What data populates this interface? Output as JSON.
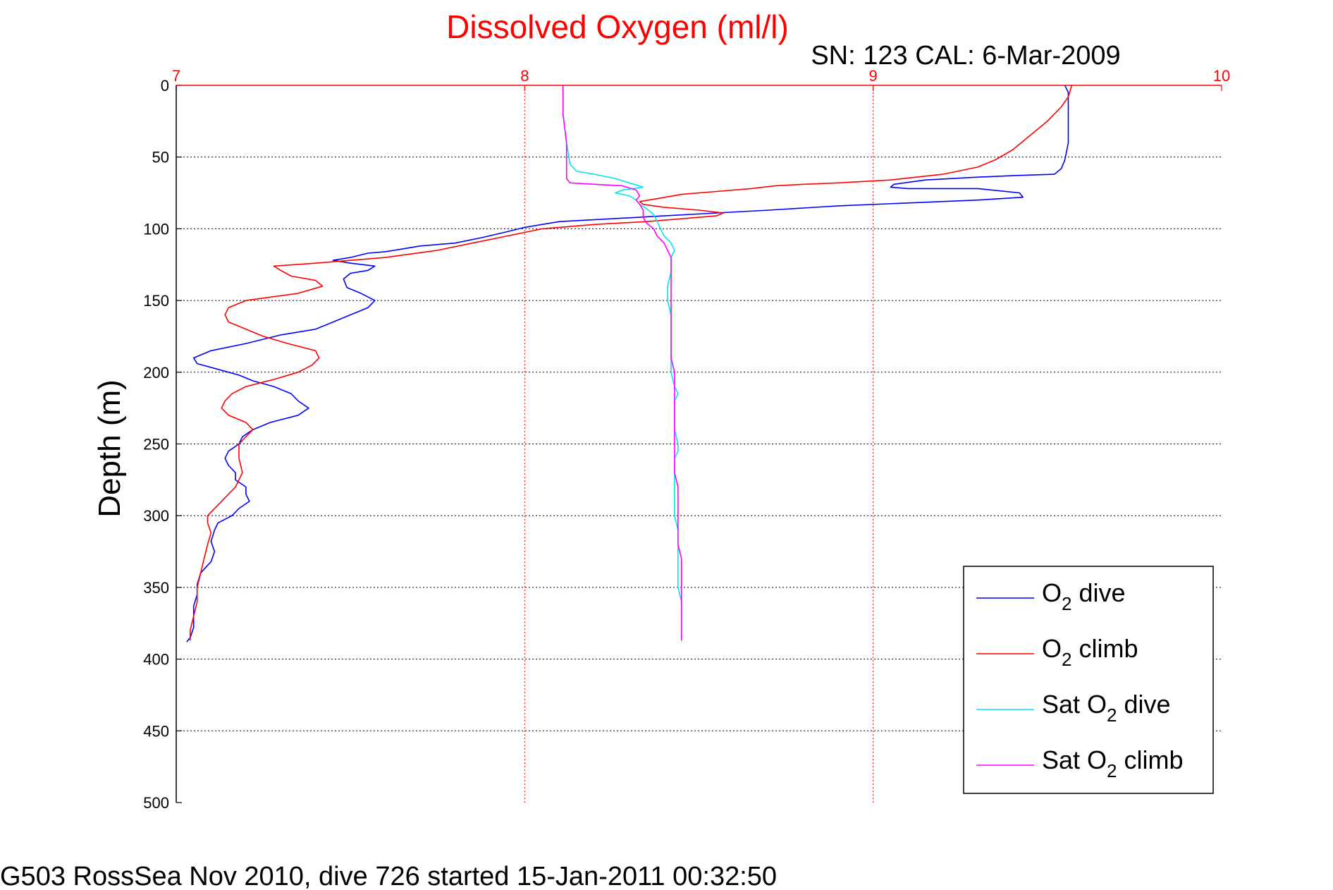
{
  "chart_data": {
    "type": "line",
    "title": "Dissolved Oxygen (ml/l)",
    "subtitle": "SN: 123  CAL: 6-Mar-2009",
    "footer": "G503 RossSea Nov 2010, dive 726 started 15-Jan-2011 00:32:50",
    "xlabel": "",
    "ylabel": "Depth (m)",
    "xlim": [
      7,
      10
    ],
    "ylim": [
      0,
      500
    ],
    "y_reversed": true,
    "x_axis_position": "top",
    "x_ticks": [
      "7",
      "8",
      "9",
      "10"
    ],
    "y_ticks": [
      "0",
      "50",
      "100",
      "150",
      "200",
      "250",
      "300",
      "350",
      "400",
      "450",
      "500"
    ],
    "grid": true,
    "legend_position": "bottom-right",
    "colors": {
      "title": "#ff0000",
      "x_axis": "#ff0000",
      "axes": "#000000"
    },
    "series": [
      {
        "name": "O2 dive",
        "legend": {
          "prefix": "O",
          "sub": "2",
          "suffix": " dive"
        },
        "color": "#0000ff",
        "points": [
          [
            9.55,
            0
          ],
          [
            9.56,
            5
          ],
          [
            9.56,
            20
          ],
          [
            9.56,
            40
          ],
          [
            9.55,
            52
          ],
          [
            9.54,
            58
          ],
          [
            9.52,
            62
          ],
          [
            9.4,
            63
          ],
          [
            9.3,
            64
          ],
          [
            9.15,
            66
          ],
          [
            9.06,
            69
          ],
          [
            9.05,
            71
          ],
          [
            9.1,
            72
          ],
          [
            9.3,
            72
          ],
          [
            9.42,
            75
          ],
          [
            9.43,
            78
          ],
          [
            9.3,
            80
          ],
          [
            9.1,
            82
          ],
          [
            8.9,
            84
          ],
          [
            8.7,
            87
          ],
          [
            8.55,
            89
          ],
          [
            8.4,
            91
          ],
          [
            8.25,
            93
          ],
          [
            8.1,
            95
          ],
          [
            8.0,
            99
          ],
          [
            7.95,
            102
          ],
          [
            7.88,
            106
          ],
          [
            7.8,
            110
          ],
          [
            7.7,
            112
          ],
          [
            7.65,
            114
          ],
          [
            7.6,
            116
          ],
          [
            7.55,
            117
          ],
          [
            7.5,
            120
          ],
          [
            7.45,
            122
          ],
          [
            7.5,
            124
          ],
          [
            7.57,
            126
          ],
          [
            7.55,
            129
          ],
          [
            7.5,
            131
          ],
          [
            7.48,
            135
          ],
          [
            7.49,
            141
          ],
          [
            7.53,
            145
          ],
          [
            7.57,
            150
          ],
          [
            7.55,
            155
          ],
          [
            7.5,
            160
          ],
          [
            7.45,
            165
          ],
          [
            7.4,
            170
          ],
          [
            7.3,
            174
          ],
          [
            7.2,
            180
          ],
          [
            7.1,
            185
          ],
          [
            7.05,
            190
          ],
          [
            7.06,
            194
          ],
          [
            7.12,
            198
          ],
          [
            7.18,
            202
          ],
          [
            7.22,
            206
          ],
          [
            7.28,
            210
          ],
          [
            7.33,
            215
          ],
          [
            7.35,
            220
          ],
          [
            7.38,
            225
          ],
          [
            7.35,
            230
          ],
          [
            7.27,
            235
          ],
          [
            7.22,
            240
          ],
          [
            7.19,
            245
          ],
          [
            7.18,
            250
          ],
          [
            7.15,
            255
          ],
          [
            7.14,
            260
          ],
          [
            7.15,
            265
          ],
          [
            7.17,
            270
          ],
          [
            7.17,
            275
          ],
          [
            7.2,
            280
          ],
          [
            7.2,
            285
          ],
          [
            7.21,
            290
          ],
          [
            7.18,
            295
          ],
          [
            7.16,
            300
          ],
          [
            7.12,
            305
          ],
          [
            7.11,
            310
          ],
          [
            7.1,
            318
          ],
          [
            7.11,
            325
          ],
          [
            7.1,
            332
          ],
          [
            7.07,
            340
          ],
          [
            7.06,
            348
          ],
          [
            7.06,
            355
          ],
          [
            7.05,
            363
          ],
          [
            7.05,
            370
          ],
          [
            7.05,
            378
          ],
          [
            7.04,
            385
          ],
          [
            7.03,
            388
          ]
        ]
      },
      {
        "name": "O2 climb",
        "legend": {
          "prefix": "O",
          "sub": "2",
          "suffix": " climb"
        },
        "color": "#ff0000",
        "points": [
          [
            9.57,
            0
          ],
          [
            9.56,
            8
          ],
          [
            9.54,
            15
          ],
          [
            9.5,
            25
          ],
          [
            9.45,
            35
          ],
          [
            9.4,
            45
          ],
          [
            9.35,
            52
          ],
          [
            9.3,
            57
          ],
          [
            9.2,
            62
          ],
          [
            9.05,
            66
          ],
          [
            8.9,
            68
          ],
          [
            8.8,
            69
          ],
          [
            8.72,
            70
          ],
          [
            8.65,
            72
          ],
          [
            8.55,
            74
          ],
          [
            8.45,
            76
          ],
          [
            8.38,
            79
          ],
          [
            8.33,
            81
          ],
          [
            8.34,
            83
          ],
          [
            8.4,
            85
          ],
          [
            8.5,
            87
          ],
          [
            8.57,
            89
          ],
          [
            8.55,
            91
          ],
          [
            8.45,
            93
          ],
          [
            8.35,
            95
          ],
          [
            8.2,
            97
          ],
          [
            8.05,
            100
          ],
          [
            7.95,
            105
          ],
          [
            7.85,
            110
          ],
          [
            7.75,
            115
          ],
          [
            7.6,
            120
          ],
          [
            7.4,
            124
          ],
          [
            7.28,
            126
          ],
          [
            7.3,
            129
          ],
          [
            7.33,
            133
          ],
          [
            7.4,
            136
          ],
          [
            7.42,
            140
          ],
          [
            7.35,
            145
          ],
          [
            7.2,
            150
          ],
          [
            7.15,
            155
          ],
          [
            7.14,
            160
          ],
          [
            7.15,
            165
          ],
          [
            7.2,
            170
          ],
          [
            7.25,
            175
          ],
          [
            7.32,
            180
          ],
          [
            7.4,
            185
          ],
          [
            7.41,
            190
          ],
          [
            7.39,
            195
          ],
          [
            7.35,
            200
          ],
          [
            7.28,
            205
          ],
          [
            7.2,
            210
          ],
          [
            7.16,
            215
          ],
          [
            7.14,
            220
          ],
          [
            7.13,
            225
          ],
          [
            7.15,
            230
          ],
          [
            7.2,
            235
          ],
          [
            7.22,
            240
          ],
          [
            7.2,
            245
          ],
          [
            7.18,
            250
          ],
          [
            7.18,
            260
          ],
          [
            7.19,
            270
          ],
          [
            7.17,
            280
          ],
          [
            7.13,
            290
          ],
          [
            7.09,
            300
          ],
          [
            7.09,
            305
          ],
          [
            7.1,
            312
          ],
          [
            7.09,
            320
          ],
          [
            7.08,
            330
          ],
          [
            7.07,
            340
          ],
          [
            7.06,
            350
          ],
          [
            7.06,
            360
          ],
          [
            7.05,
            370
          ],
          [
            7.04,
            380
          ],
          [
            7.04,
            387
          ]
        ]
      },
      {
        "name": "Sat O2 dive",
        "legend": {
          "prefix": "Sat O",
          "sub": "2",
          "suffix": " dive"
        },
        "color": "#00e5ee",
        "points": [
          [
            8.11,
            0
          ],
          [
            8.11,
            20
          ],
          [
            8.12,
            40
          ],
          [
            8.13,
            55
          ],
          [
            8.15,
            60
          ],
          [
            8.2,
            62
          ],
          [
            8.26,
            65
          ],
          [
            8.3,
            68
          ],
          [
            8.34,
            71
          ],
          [
            8.28,
            73
          ],
          [
            8.26,
            75
          ],
          [
            8.3,
            77
          ],
          [
            8.32,
            80
          ],
          [
            8.33,
            83
          ],
          [
            8.35,
            86
          ],
          [
            8.37,
            90
          ],
          [
            8.38,
            95
          ],
          [
            8.39,
            100
          ],
          [
            8.4,
            105
          ],
          [
            8.42,
            110
          ],
          [
            8.43,
            115
          ],
          [
            8.42,
            120
          ],
          [
            8.42,
            130
          ],
          [
            8.41,
            140
          ],
          [
            8.41,
            150
          ],
          [
            8.42,
            160
          ],
          [
            8.42,
            170
          ],
          [
            8.42,
            180
          ],
          [
            8.42,
            190
          ],
          [
            8.42,
            200
          ],
          [
            8.43,
            210
          ],
          [
            8.44,
            215
          ],
          [
            8.43,
            220
          ],
          [
            8.43,
            230
          ],
          [
            8.43,
            240
          ],
          [
            8.44,
            250
          ],
          [
            8.44,
            255
          ],
          [
            8.43,
            260
          ],
          [
            8.43,
            270
          ],
          [
            8.43,
            280
          ],
          [
            8.43,
            290
          ],
          [
            8.43,
            300
          ],
          [
            8.44,
            310
          ],
          [
            8.44,
            320
          ],
          [
            8.44,
            330
          ],
          [
            8.44,
            340
          ],
          [
            8.44,
            350
          ],
          [
            8.45,
            360
          ],
          [
            8.45,
            370
          ],
          [
            8.45,
            380
          ],
          [
            8.45,
            387
          ]
        ]
      },
      {
        "name": "Sat O2 climb",
        "legend": {
          "prefix": "Sat O",
          "sub": "2",
          "suffix": " climb"
        },
        "color": "#ff00ff",
        "points": [
          [
            8.11,
            0
          ],
          [
            8.11,
            20
          ],
          [
            8.12,
            40
          ],
          [
            8.12,
            55
          ],
          [
            8.12,
            65
          ],
          [
            8.13,
            68
          ],
          [
            8.2,
            69
          ],
          [
            8.28,
            70
          ],
          [
            8.32,
            73
          ],
          [
            8.33,
            77
          ],
          [
            8.32,
            80
          ],
          [
            8.33,
            83
          ],
          [
            8.34,
            87
          ],
          [
            8.34,
            92
          ],
          [
            8.35,
            96
          ],
          [
            8.37,
            100
          ],
          [
            8.38,
            105
          ],
          [
            8.4,
            110
          ],
          [
            8.41,
            115
          ],
          [
            8.42,
            120
          ],
          [
            8.42,
            130
          ],
          [
            8.42,
            140
          ],
          [
            8.42,
            150
          ],
          [
            8.42,
            160
          ],
          [
            8.42,
            170
          ],
          [
            8.42,
            180
          ],
          [
            8.42,
            190
          ],
          [
            8.43,
            200
          ],
          [
            8.43,
            210
          ],
          [
            8.43,
            220
          ],
          [
            8.43,
            230
          ],
          [
            8.43,
            240
          ],
          [
            8.43,
            250
          ],
          [
            8.43,
            260
          ],
          [
            8.43,
            270
          ],
          [
            8.44,
            280
          ],
          [
            8.44,
            290
          ],
          [
            8.44,
            300
          ],
          [
            8.44,
            310
          ],
          [
            8.44,
            320
          ],
          [
            8.45,
            330
          ],
          [
            8.45,
            340
          ],
          [
            8.45,
            350
          ],
          [
            8.45,
            360
          ],
          [
            8.45,
            370
          ],
          [
            8.45,
            380
          ],
          [
            8.45,
            387
          ]
        ]
      }
    ]
  }
}
